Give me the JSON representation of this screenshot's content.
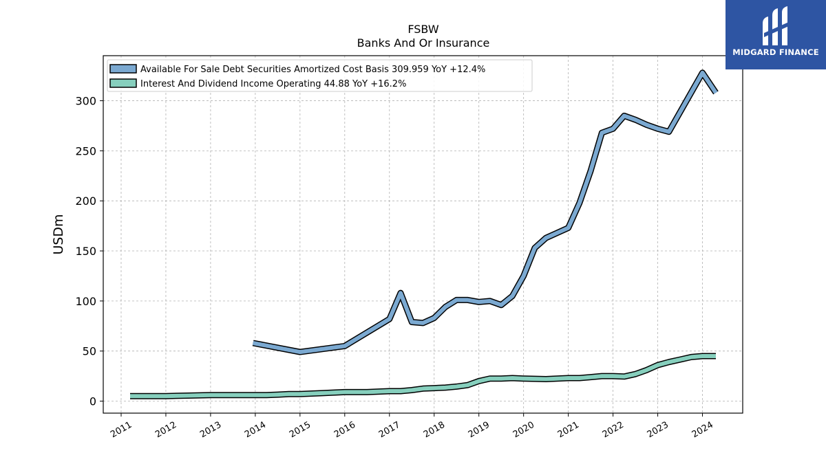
{
  "brand": {
    "name": "MIDGARD FINANCE"
  },
  "chart_data": {
    "type": "line",
    "title": "FSBW",
    "subtitle": "Banks And Or Insurance",
    "ylabel": "USDm",
    "xlabel": "",
    "ylim": [
      -12,
      345
    ],
    "xlim": [
      2010.6,
      2024.9
    ],
    "yticks": [
      0,
      50,
      100,
      150,
      200,
      250,
      300
    ],
    "xticks": [
      "2011",
      "2012",
      "2013",
      "2014",
      "2015",
      "2016",
      "2017",
      "2018",
      "2019",
      "2020",
      "2021",
      "2022",
      "2023",
      "2024"
    ],
    "grid": true,
    "legend_position": "top-left",
    "series": [
      {
        "name": "Available For Sale Debt Securities Amortized Cost Basis",
        "legend_label": "Available For Sale Debt Securities Amortized Cost Basis  309.959 YoY +12.4%",
        "color": "#7ba9d1",
        "points": [
          [
            2013.95,
            58
          ],
          [
            2015.0,
            49
          ],
          [
            2016.0,
            55
          ],
          [
            2017.0,
            82
          ],
          [
            2017.25,
            108
          ],
          [
            2017.5,
            79
          ],
          [
            2017.75,
            78
          ],
          [
            2018.0,
            83
          ],
          [
            2018.25,
            94
          ],
          [
            2018.5,
            101
          ],
          [
            2018.75,
            101
          ],
          [
            2019.0,
            99
          ],
          [
            2019.25,
            100
          ],
          [
            2019.5,
            96
          ],
          [
            2019.75,
            105
          ],
          [
            2020.0,
            125
          ],
          [
            2020.25,
            153
          ],
          [
            2020.5,
            163
          ],
          [
            2020.75,
            168
          ],
          [
            2021.0,
            173
          ],
          [
            2021.25,
            198
          ],
          [
            2021.5,
            230
          ],
          [
            2021.75,
            268
          ],
          [
            2022.0,
            272
          ],
          [
            2022.25,
            285
          ],
          [
            2022.5,
            281
          ],
          [
            2022.75,
            276
          ],
          [
            2023.0,
            272
          ],
          [
            2023.25,
            269
          ],
          [
            2024.0,
            328
          ],
          [
            2024.3,
            308
          ]
        ]
      },
      {
        "name": "Interest And Dividend Income Operating",
        "legend_label": "Interest And Dividend Income Operating  44.88 YoY +16.2%",
        "color": "#86cfbd",
        "points": [
          [
            2011.2,
            5
          ],
          [
            2011.5,
            5
          ],
          [
            2012.0,
            5
          ],
          [
            2012.5,
            5.5
          ],
          [
            2013.0,
            6
          ],
          [
            2013.5,
            6
          ],
          [
            2014.0,
            6
          ],
          [
            2014.25,
            6
          ],
          [
            2014.5,
            6.5
          ],
          [
            2014.75,
            7
          ],
          [
            2015.0,
            7
          ],
          [
            2015.5,
            8
          ],
          [
            2016.0,
            9
          ],
          [
            2016.5,
            9
          ],
          [
            2017.0,
            10
          ],
          [
            2017.25,
            10
          ],
          [
            2017.5,
            11
          ],
          [
            2017.75,
            12.5
          ],
          [
            2018.0,
            13
          ],
          [
            2018.25,
            13.5
          ],
          [
            2018.5,
            14.5
          ],
          [
            2018.75,
            16
          ],
          [
            2019.0,
            20
          ],
          [
            2019.25,
            22.5
          ],
          [
            2019.5,
            22.5
          ],
          [
            2019.75,
            23
          ],
          [
            2020.0,
            22.5
          ],
          [
            2020.5,
            22
          ],
          [
            2021.0,
            23
          ],
          [
            2021.25,
            23
          ],
          [
            2021.5,
            24
          ],
          [
            2021.75,
            25
          ],
          [
            2022.0,
            25
          ],
          [
            2022.25,
            24.5
          ],
          [
            2022.5,
            27
          ],
          [
            2022.75,
            31
          ],
          [
            2023.0,
            36
          ],
          [
            2023.25,
            39
          ],
          [
            2023.5,
            41.5
          ],
          [
            2023.75,
            44
          ],
          [
            2024.0,
            45
          ],
          [
            2024.3,
            45
          ]
        ]
      }
    ]
  }
}
